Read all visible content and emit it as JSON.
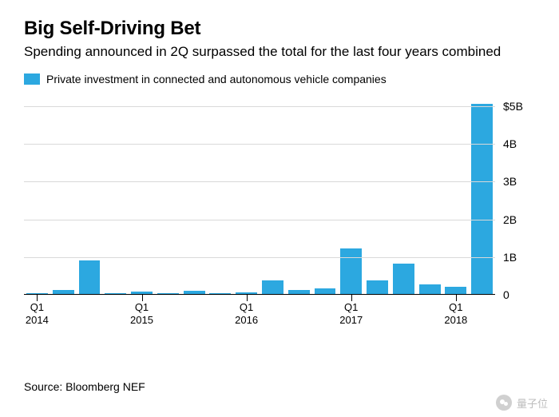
{
  "title": "Big Self-Driving Bet",
  "subtitle": "Spending announced in 2Q surpassed the total for the last four years combined",
  "legend": {
    "swatch_color": "#2ca8e0",
    "label": "Private investment in connected and autonomous vehicle companies"
  },
  "chart": {
    "type": "bar",
    "bar_color": "#2ca8e0",
    "background_color": "#ffffff",
    "grid_color": "#d9d9d9",
    "axis_color": "#000000",
    "y": {
      "min": 0,
      "max": 5.3,
      "ticks": [
        0,
        1,
        2,
        3,
        4,
        5
      ],
      "tick_labels": [
        "0",
        "1B",
        "2B",
        "3B",
        "4B",
        "$5B"
      ]
    },
    "x": {
      "ticks_at": [
        0,
        4,
        8,
        12,
        16
      ],
      "tick_labels": [
        "Q1\n2014",
        "Q1\n2015",
        "Q1\n2016",
        "Q1\n2017",
        "Q1\n2018"
      ]
    },
    "values": [
      0.02,
      0.1,
      0.9,
      0.03,
      0.06,
      0.02,
      0.08,
      0.02,
      0.04,
      0.35,
      0.1,
      0.15,
      1.2,
      0.35,
      0.8,
      0.25,
      0.2,
      5.05
    ],
    "title_fontsize": 24,
    "subtitle_fontsize": 17,
    "label_fontsize": 14,
    "bar_width_ratio": 0.82
  },
  "source": "Source: Bloomberg NEF",
  "watermark": {
    "text": "量子位"
  }
}
